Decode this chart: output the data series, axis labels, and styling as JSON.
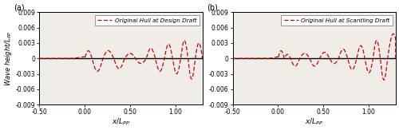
{
  "title_a": "(a)",
  "title_b": "(b)",
  "legend_a": "Original Hull at Design Draft",
  "legend_b": "Original Hull at Scantling Draft",
  "xlabel_a": "$x/L_{PP}$",
  "xlabel_b": "$x/L_{PP}$",
  "ylabel": "Wave height/$L_{PP}$",
  "xlim": [
    -0.5,
    1.3
  ],
  "ylim": [
    -0.009,
    0.009
  ],
  "yticks": [
    -0.009,
    -0.006,
    -0.003,
    0,
    0.003,
    0.006,
    0.009
  ],
  "xticks": [
    -0.5,
    0.0,
    0.5,
    1.0
  ],
  "xtick_labels": [
    "-0.50",
    "0.00",
    "0.50",
    "1.00"
  ],
  "ytick_labels": [
    "-0.009",
    "-0.006",
    "-0.003",
    "0",
    "0.003",
    "0.006",
    "0.009"
  ],
  "line_color": "#cc0000",
  "bg_color": "#f0ede8",
  "figsize": [
    5.0,
    1.63
  ],
  "dpi": 100
}
